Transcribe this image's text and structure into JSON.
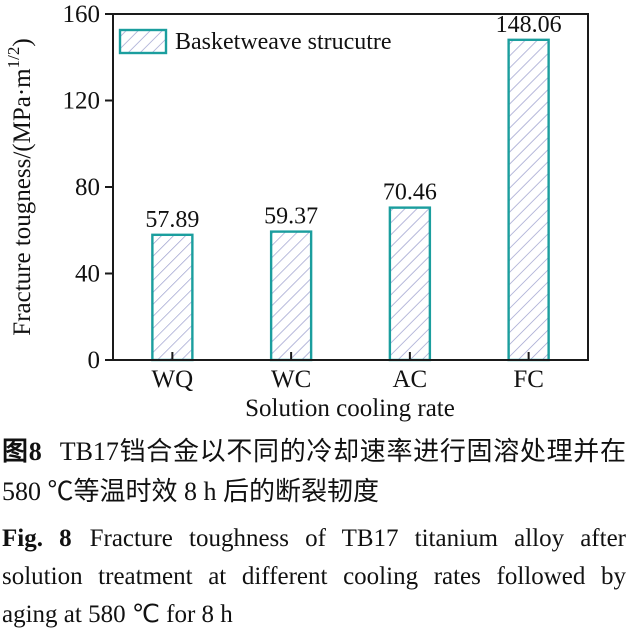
{
  "chart_data": {
    "type": "bar",
    "categories": [
      "WQ",
      "WC",
      "AC",
      "FC"
    ],
    "values": [
      57.89,
      59.37,
      70.46,
      148.06
    ],
    "value_labels": [
      "57.89",
      "59.37",
      "70.46",
      "148.06"
    ],
    "xlabel": "Solution cooling rate",
    "ylabel": "Fracture tougness/(MPa·m^1/2)",
    "ylabel_parts": {
      "prefix": "Fracture tougness/(MPa·m",
      "superscript": "1/2",
      "suffix": ")"
    },
    "ylim": [
      0,
      160
    ],
    "yticks": [
      0,
      40,
      80,
      120,
      160
    ],
    "grid": false,
    "legend": {
      "label": "Basketweave strucutre",
      "position": "top-left"
    },
    "style": {
      "bar_edge_color": "#1b9e9e",
      "bar_fill": "#ffffff",
      "hatch_color": "#999ccc",
      "hatch_style": "diagonal-forward",
      "frame_color": "#1a1a1a"
    }
  },
  "caption_cn": {
    "label": "图8",
    "line1_rest": "TB17铛合金以不同的冷却速率进行固溶处理并在",
    "line2": "580 ℃等温时效 8 h 后的断裂韧度"
  },
  "caption_en": {
    "label": "Fig. 8",
    "line1_rest": "Fracture toughness of TB17 titanium alloy after",
    "line2": "solution treatment at different cooling rates followed by",
    "line3": "aging at 580 ℃ for 8 h"
  }
}
